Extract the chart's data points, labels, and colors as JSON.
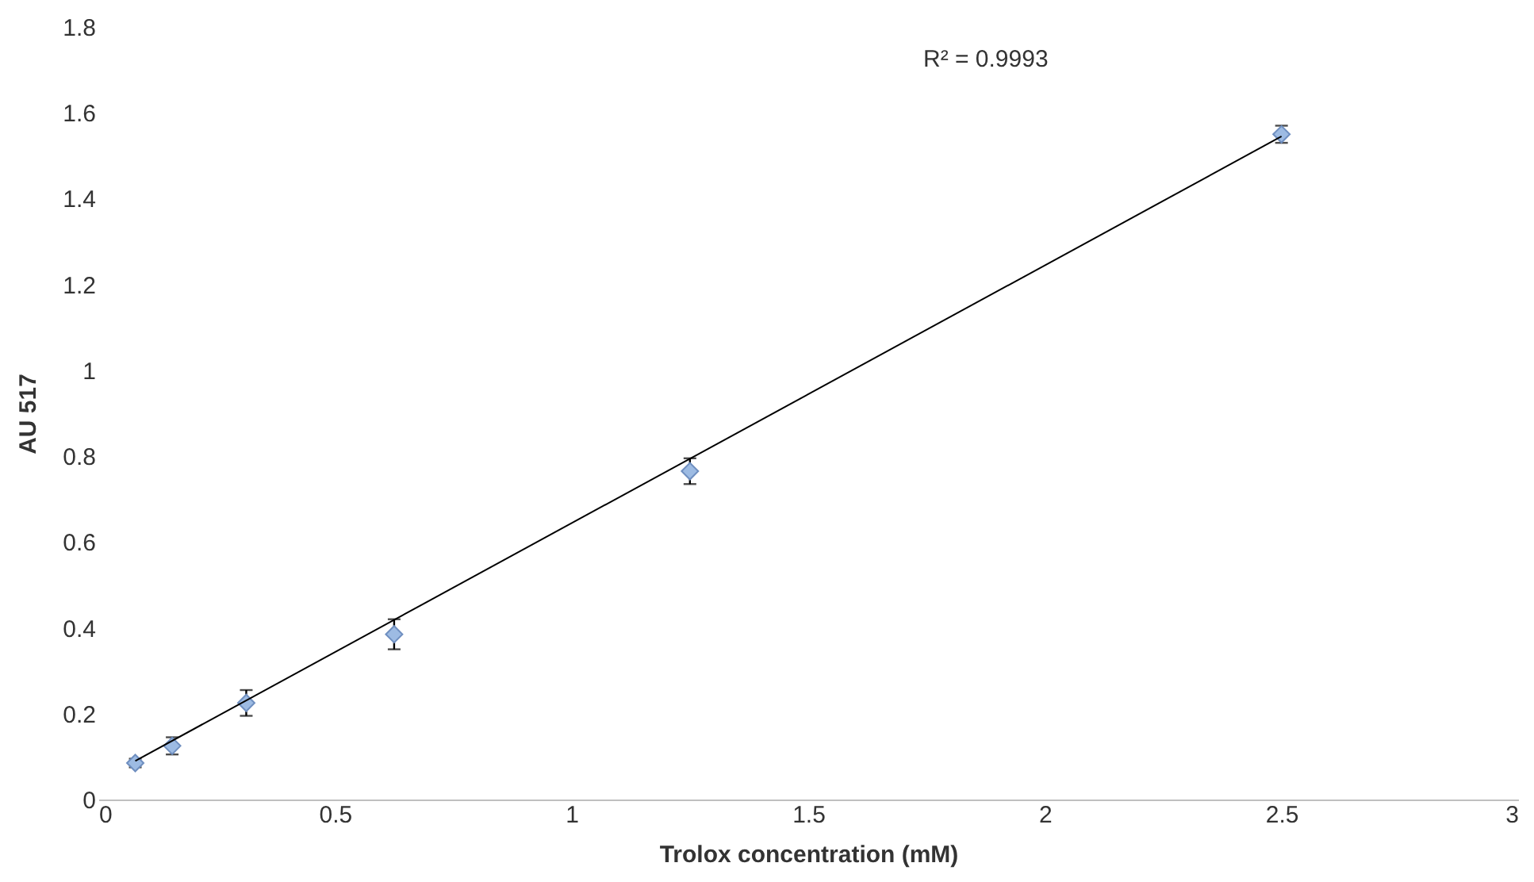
{
  "chart_data": {
    "type": "scatter",
    "xlabel": "Trolox concentration (mM)",
    "ylabel": "AU 517",
    "annotations": [
      "R² = 0.9993"
    ],
    "series": [
      {
        "color": "#9dbbe3",
        "x": [
          0.078,
          0.156,
          0.3125,
          0.625,
          1.25,
          2.5
        ],
        "values": [
          0.085,
          0.125,
          0.225,
          0.385,
          0.765,
          1.55
        ],
        "errors": [
          0.01,
          0.02,
          0.03,
          0.035,
          0.03,
          0.02
        ],
        "marker": "diamond"
      },
      {
        "type": "line",
        "color": "#000000",
        "x": [
          0.078,
          2.5
        ],
        "values": [
          0.09,
          1.545
        ],
        "line_style": "solid"
      }
    ],
    "xlim": [
      0,
      3
    ],
    "xticks": [
      0,
      0.5,
      1,
      1.5,
      2,
      2.5,
      3
    ],
    "ylim": [
      0,
      1.8
    ],
    "yticks": [
      0,
      0.2,
      0.4,
      0.6,
      0.8,
      1,
      1.2,
      1.4,
      1.6,
      1.8
    ],
    "grid": false,
    "legend": false
  }
}
